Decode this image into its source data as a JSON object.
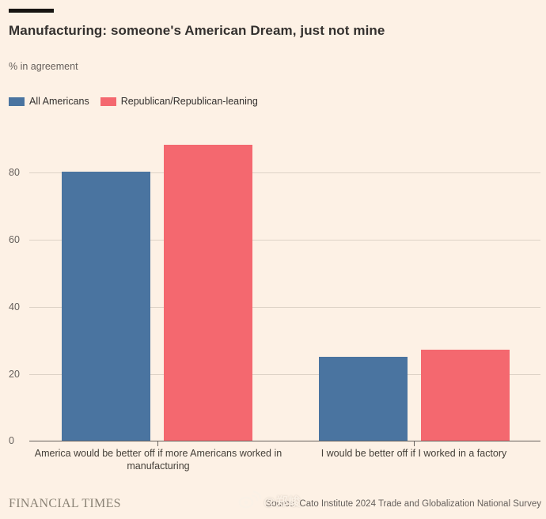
{
  "header": {
    "title": "Manufacturing: someone's American Dream, just not mine",
    "subtitle": "% in agreement"
  },
  "footer": {
    "brand": "FINANCIAL TIMES",
    "source": "Source: Cato Institute 2024 Trade and Globalization National Survey",
    "watermark_text": "@郑峻",
    "watermark_icon": "weibo-logo"
  },
  "colors": {
    "background": "#fdf1e5",
    "blue": "#4a74a0",
    "red": "#f4686f",
    "gridline": "#ddd2c6",
    "axis": "#66605c",
    "text_dark": "#33302e",
    "text_muted": "#66605c",
    "brand_text": "#8a8275"
  },
  "chart_data": {
    "type": "bar",
    "title": "Manufacturing: someone's American Dream, just not mine",
    "ylabel": "% in agreement",
    "xlabel": "",
    "categories": [
      "America would be better off if more Americans worked in manufacturing",
      "I would be better off if I worked in a factory"
    ],
    "series": [
      {
        "name": "All Americans",
        "color": "#4a74a0",
        "values": [
          80,
          25
        ]
      },
      {
        "name": "Republican/Republican-leaning",
        "color": "#f4686f",
        "values": [
          88,
          27
        ]
      }
    ],
    "yticks": [
      0,
      20,
      40,
      60,
      80
    ],
    "ylim": [
      0,
      92.5
    ],
    "grid": "horizontal",
    "legend_position": "top-left"
  }
}
